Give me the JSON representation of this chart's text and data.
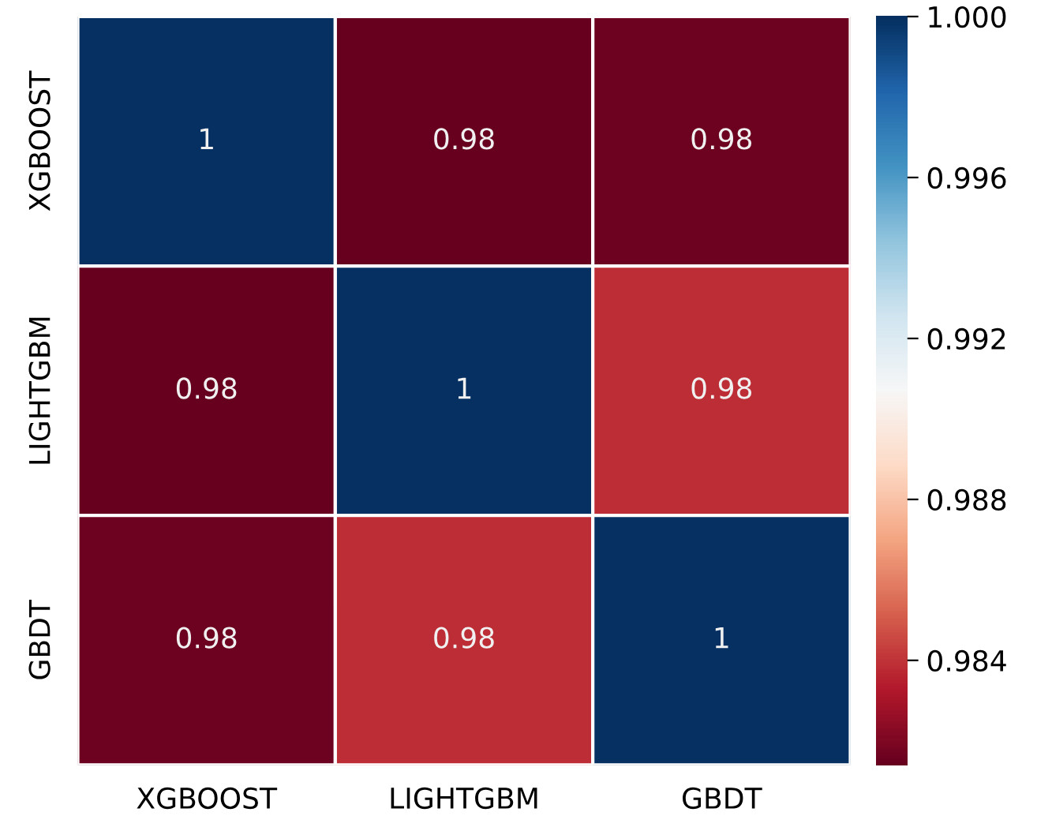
{
  "chart_data": {
    "type": "heatmap",
    "categories": [
      "XGBOOST",
      "LIGHTGBM",
      "GBDT"
    ],
    "y_categories": [
      "XGBOOST",
      "LIGHTGBM",
      "GBDT"
    ],
    "cells": [
      [
        1.0,
        0.9814,
        0.9816
      ],
      [
        0.9814,
        1.0,
        0.9838
      ],
      [
        0.9816,
        0.9838,
        1.0
      ]
    ],
    "cell_labels": [
      [
        "1",
        "0.98",
        "0.98"
      ],
      [
        "0.98",
        "1",
        "0.98"
      ],
      [
        "0.98",
        "0.98",
        "1"
      ]
    ],
    "clim": [
      0.9814,
      1.0
    ],
    "cticks": [
      0.984,
      0.988,
      0.992,
      0.996,
      {
        "value": 1.0,
        "label": "1.000"
      }
    ]
  }
}
